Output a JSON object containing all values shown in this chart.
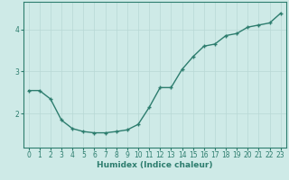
{
  "x": [
    0,
    1,
    2,
    3,
    4,
    5,
    6,
    7,
    8,
    9,
    10,
    11,
    12,
    13,
    14,
    15,
    16,
    17,
    18,
    19,
    20,
    21,
    22,
    23
  ],
  "y": [
    2.55,
    2.55,
    2.35,
    1.85,
    1.65,
    1.58,
    1.55,
    1.55,
    1.58,
    1.62,
    1.75,
    2.15,
    2.62,
    2.62,
    3.05,
    3.35,
    3.6,
    3.65,
    3.85,
    3.9,
    4.05,
    4.1,
    4.15,
    4.38
  ],
  "line_color": "#2d7d6e",
  "marker": "+",
  "bg_color": "#ceeae7",
  "grid_color": "#b8d8d5",
  "axis_color": "#2d7d6e",
  "xlabel": "Humidex (Indice chaleur)",
  "xlim": [
    -0.5,
    23.5
  ],
  "ylim": [
    1.2,
    4.65
  ],
  "yticks": [
    2,
    3,
    4
  ],
  "xticks": [
    0,
    1,
    2,
    3,
    4,
    5,
    6,
    7,
    8,
    9,
    10,
    11,
    12,
    13,
    14,
    15,
    16,
    17,
    18,
    19,
    20,
    21,
    22,
    23
  ],
  "xlabel_fontsize": 6.5,
  "tick_fontsize": 5.5,
  "linewidth": 1.0,
  "markersize": 3.5
}
